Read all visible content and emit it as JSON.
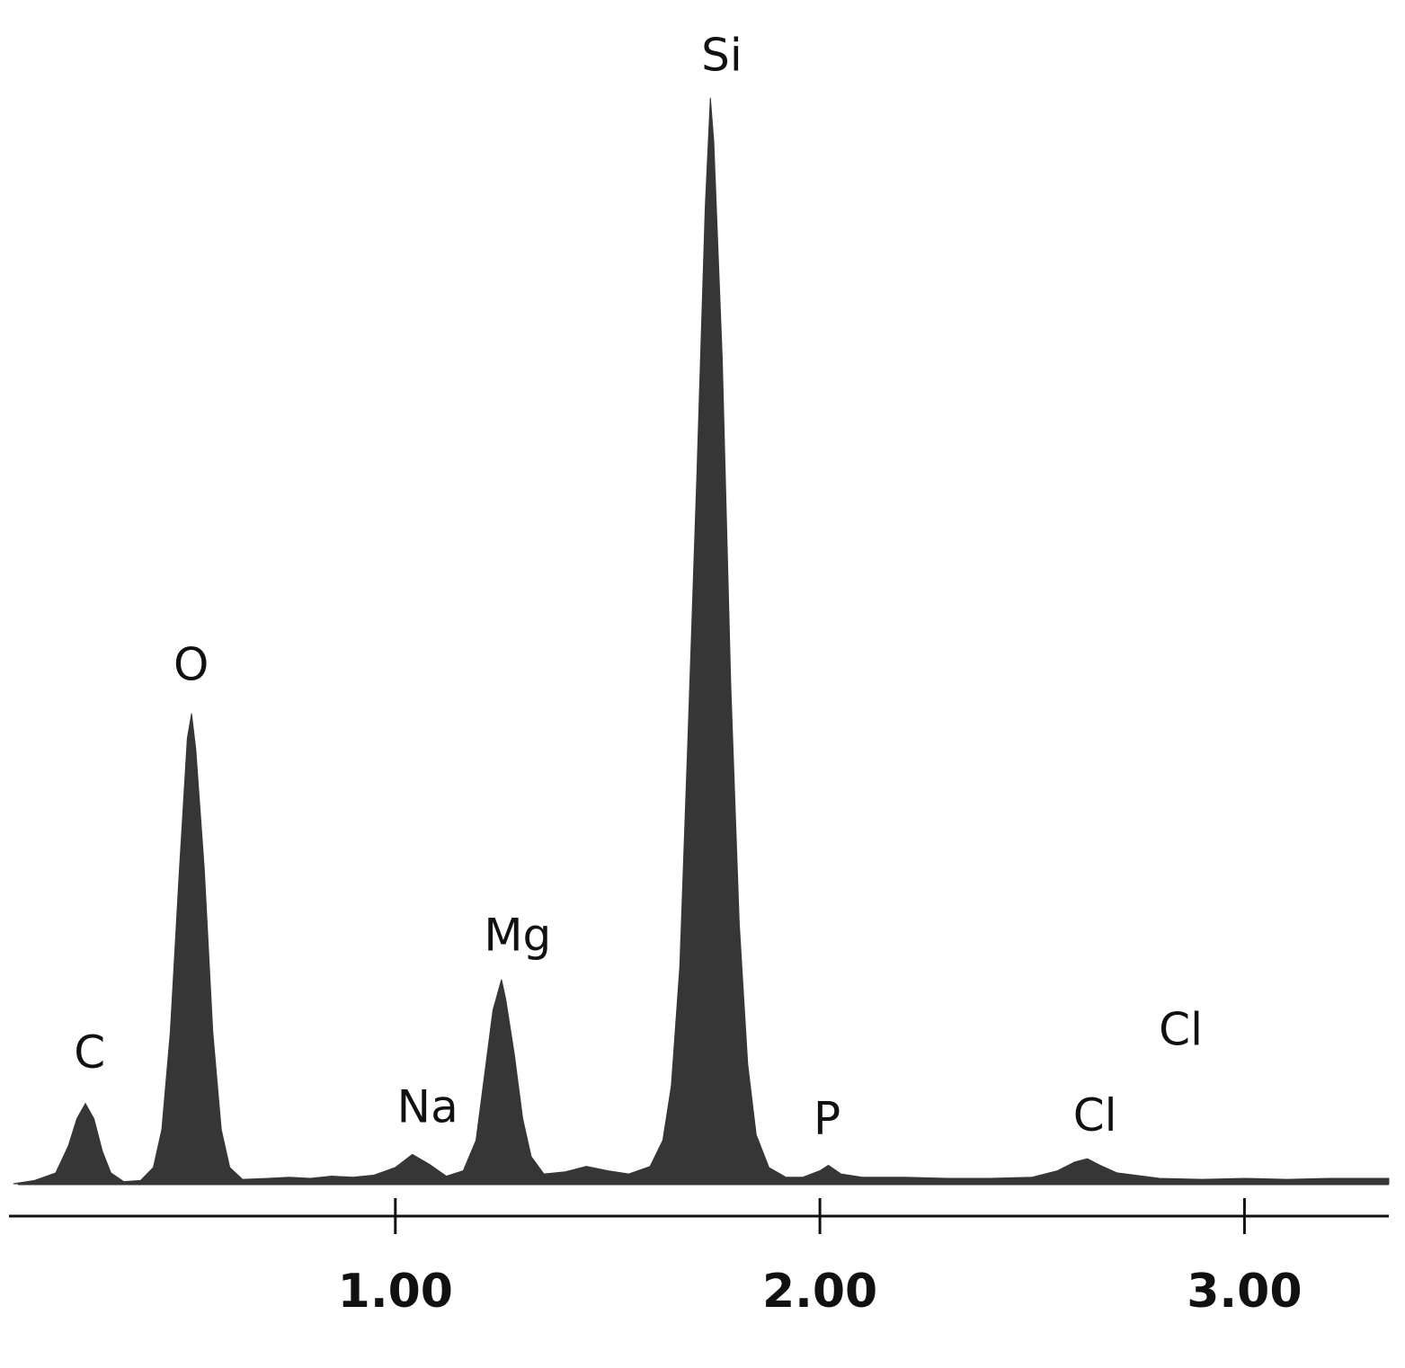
{
  "chart_data": {
    "type": "area",
    "color": "#363636",
    "x": [
      0.1,
      0.15,
      0.2,
      0.23,
      0.25,
      0.27,
      0.29,
      0.31,
      0.33,
      0.36,
      0.4,
      0.43,
      0.45,
      0.47,
      0.49,
      0.51,
      0.52,
      0.53,
      0.55,
      0.57,
      0.59,
      0.61,
      0.64,
      0.7,
      0.75,
      0.8,
      0.85,
      0.9,
      0.95,
      1.0,
      1.04,
      1.08,
      1.12,
      1.16,
      1.19,
      1.21,
      1.23,
      1.25,
      1.26,
      1.28,
      1.3,
      1.32,
      1.35,
      1.4,
      1.45,
      1.5,
      1.55,
      1.6,
      1.63,
      1.65,
      1.67,
      1.69,
      1.71,
      1.73,
      1.742,
      1.75,
      1.77,
      1.79,
      1.81,
      1.83,
      1.85,
      1.88,
      1.92,
      1.96,
      2.0,
      2.02,
      2.05,
      2.1,
      2.2,
      2.3,
      2.4,
      2.5,
      2.56,
      2.6,
      2.63,
      2.66,
      2.7,
      2.8,
      2.9,
      3.0,
      3.1,
      3.2,
      3.34
    ],
    "values": [
      0,
      0.3,
      1.0,
      3.5,
      6.0,
      7.4,
      6.0,
      3.0,
      1.0,
      0.2,
      0.3,
      1.5,
      5,
      14,
      28,
      41,
      43.3,
      40,
      29,
      14,
      5,
      1.5,
      0.4,
      0.5,
      0.6,
      0.5,
      0.7,
      0.6,
      0.8,
      1.5,
      2.7,
      1.8,
      0.7,
      1.2,
      4,
      10,
      16,
      18.8,
      17,
      12,
      6,
      2.5,
      0.9,
      1.1,
      1.6,
      1.2,
      0.9,
      1.6,
      4,
      9,
      20,
      42,
      65,
      90,
      100,
      96,
      76,
      46,
      24,
      11,
      4.5,
      1.5,
      0.6,
      0.6,
      1.2,
      1.7,
      0.9,
      0.6,
      0.6,
      0.5,
      0.5,
      0.6,
      1.2,
      2.0,
      2.3,
      1.7,
      1.0,
      0.5,
      0.4,
      0.5,
      0.4,
      0.5,
      0.5
    ],
    "xlim": [
      0.09,
      3.34
    ],
    "ylim": [
      0,
      109
    ],
    "xticks": [
      {
        "value": 1,
        "label": "1.00"
      },
      {
        "value": 2,
        "label": "2.00"
      },
      {
        "value": 3,
        "label": "3.00"
      }
    ],
    "annotations": [
      {
        "text": "C",
        "x": 0.28,
        "y": 11.8
      },
      {
        "text": "O",
        "x": 0.519,
        "y": 47.5
      },
      {
        "text": "Na",
        "x": 1.076,
        "y": 6.8
      },
      {
        "text": "Mg",
        "x": 1.288,
        "y": 22.6
      },
      {
        "text": "Si",
        "x": 1.769,
        "y": 103.6
      },
      {
        "text": "P",
        "x": 2.017,
        "y": 5.7
      },
      {
        "text": "Cl",
        "x": 2.648,
        "y": 6.0
      },
      {
        "text": "Cl",
        "x": 2.85,
        "y": 13.9
      }
    ]
  }
}
